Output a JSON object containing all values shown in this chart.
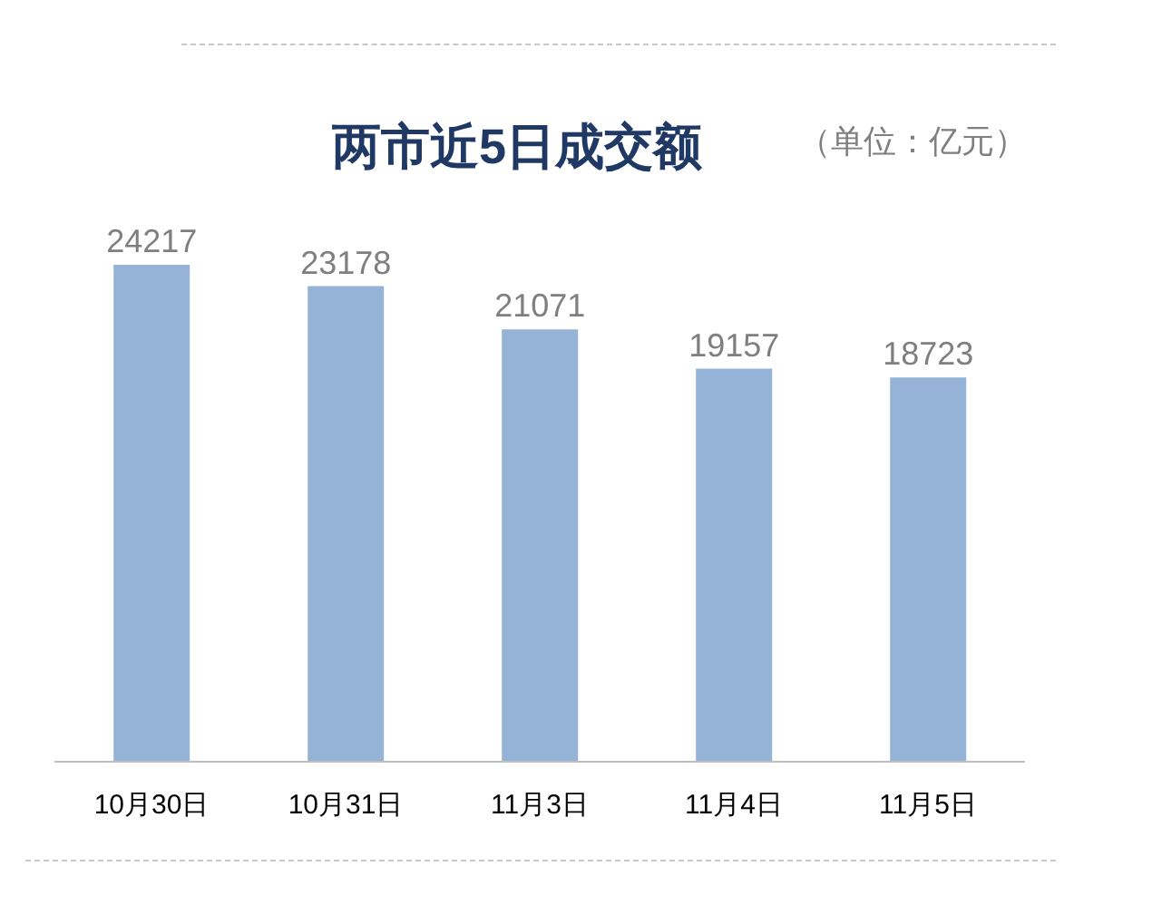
{
  "chart_data": {
    "type": "bar",
    "title": "两市近5日成交额",
    "annotations": [
      "（单位：亿元）"
    ],
    "categories": [
      "10月30日",
      "10月31日",
      "11月3日",
      "11月4日",
      "11月5日"
    ],
    "values": [
      24217,
      23178,
      21071,
      19157,
      18723
    ],
    "color": "#95b3d7",
    "data_labels": true
  }
}
